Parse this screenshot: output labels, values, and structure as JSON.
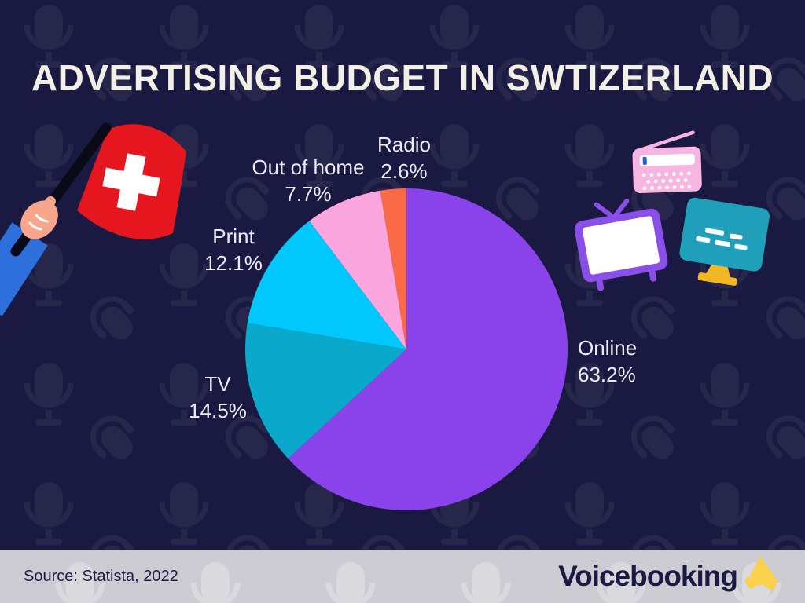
{
  "page": {
    "title": "ADVERTISING BUDGET IN SWTIZERLAND",
    "background_color": "#1a1941",
    "text_color": "#eceaf5"
  },
  "chart_data": {
    "type": "pie",
    "title": "ADVERTISING BUDGET IN SWTIZERLAND",
    "categories": [
      "Online",
      "TV",
      "Print",
      "Out of home",
      "Radio"
    ],
    "values": [
      63.2,
      14.5,
      12.1,
      7.7,
      2.6
    ],
    "value_labels": [
      "63.2%",
      "14.5%",
      "12.1%",
      "7.7%",
      "2.6%"
    ],
    "colors": [
      "#8a43ea",
      "#0aa9cb",
      "#00c8fd",
      "#fba6de",
      "#fa6a47"
    ],
    "unit": "%",
    "start_angle": "12 o'clock",
    "direction": "clockwise",
    "legend_position": "labels around pie"
  },
  "footer": {
    "source": "Source: Statista, 2022",
    "brand": "Voicebooking",
    "bar_color": "#cdccd3",
    "brand_color": "#1b1a42",
    "megaphone_color": "#fbd04b"
  },
  "decorations": {
    "background_pattern": "microphone-pattern",
    "swiss_flag": {
      "flag_red": "#e5161d",
      "cross_color": "#ffffff",
      "pole_color": "#0a0a16",
      "sleeve_blue": "#2e70db",
      "skin_tone": "#f7a68c"
    },
    "media_icons": [
      {
        "name": "radio-icon",
        "body_color": "#f7b5e2",
        "detail_color": "#ffffff",
        "tick_color": "#2e5bd0"
      },
      {
        "name": "tv-icon",
        "body_color": "#8a4fe9",
        "screen_color": "#ffffff"
      },
      {
        "name": "monitor-icon",
        "body_color": "#1f9fba",
        "stand_color": "#f2b722",
        "text_color": "#ffffff"
      }
    ]
  }
}
